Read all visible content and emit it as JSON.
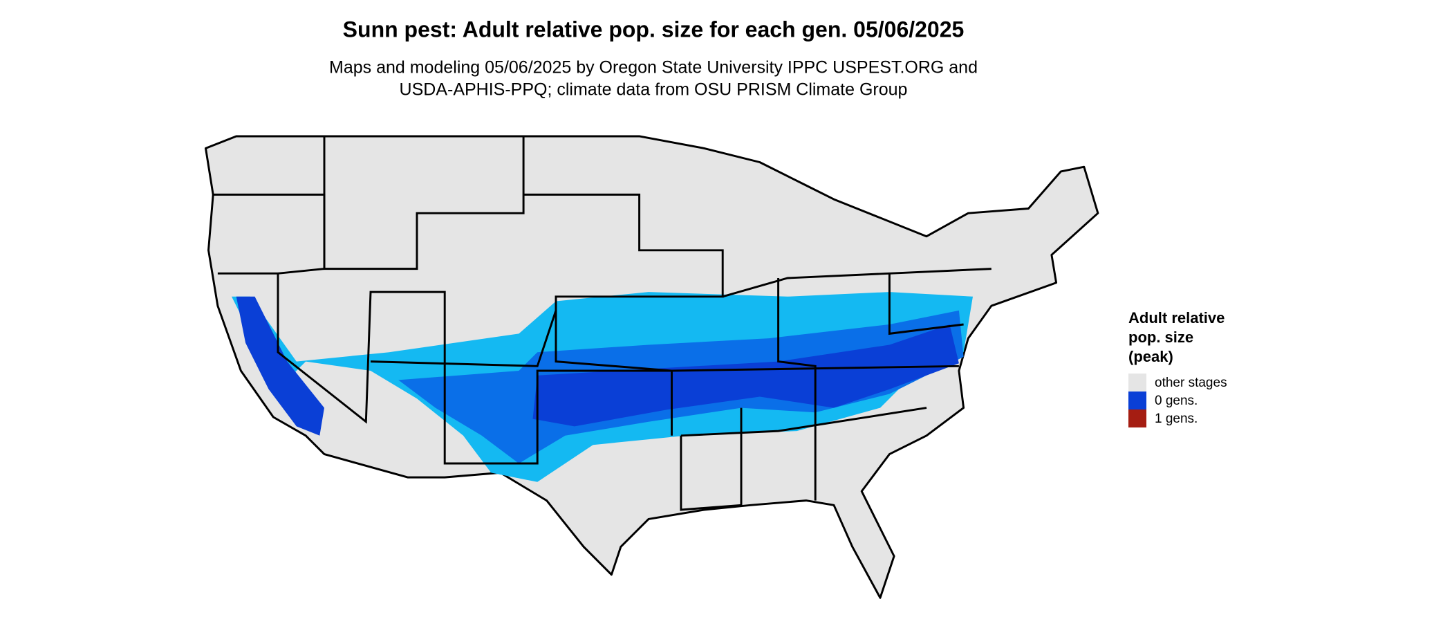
{
  "title": "Sunn pest: Adult relative pop. size for each gen. 05/06/2025",
  "subtitle": [
    "Maps and modeling 05/06/2025 by Oregon State University IPPC USPEST.ORG and",
    "USDA-APHIS-PPQ; climate data from OSU PRISM Climate Group"
  ],
  "legend": {
    "title": [
      "Adult relative",
      "pop. size",
      "(peak)"
    ],
    "items": [
      {
        "label": "other stages",
        "color": "#e5e5e5"
      },
      {
        "label": "0 gens.",
        "color": "#0a3fd6"
      },
      {
        "label": "1 gens.",
        "color": "#a51d12"
      }
    ]
  }
}
